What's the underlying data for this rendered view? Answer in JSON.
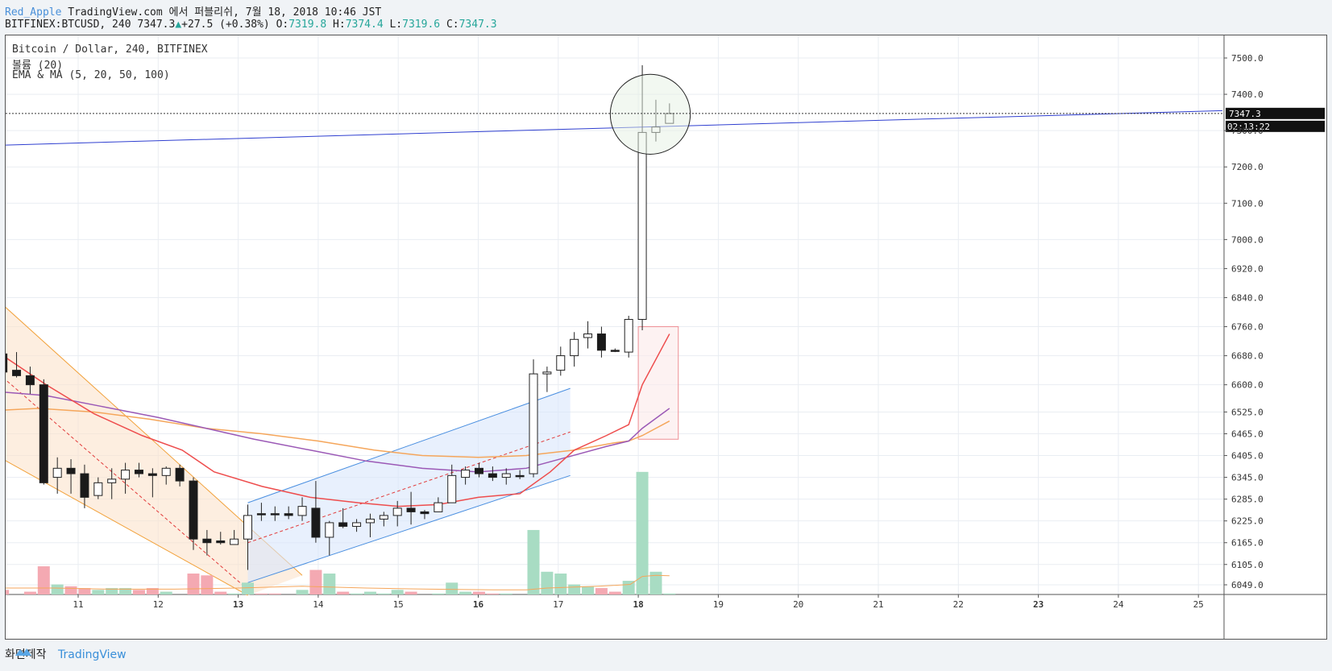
{
  "header": {
    "author": "Red_Apple",
    "published": "TradingView.com 에서 퍼블리쉬, 7월 18, 2018 10:46 JST",
    "symbol_line": "BITFINEX:BTCUSD, 240",
    "last": "7347.3",
    "change": "+27.5 (+0.38%)",
    "o_label": "O:",
    "o_val": "7319.8",
    "h_label": "H:",
    "h_val": "7374.4",
    "l_label": "L:",
    "l_val": "7319.6",
    "c_label": "C:",
    "c_val": "7347.3"
  },
  "legend": {
    "title": "Bitcoin / Dollar, 240, BITFINEX",
    "volume": "볼륨 (20)",
    "ema": "EMA & MA (5, 20, 50, 100)"
  },
  "footer": {
    "made": "화면제작",
    "brand": "TradingView"
  },
  "colors": {
    "up": "#ffffff",
    "down": "#1a1a1a",
    "vol_up": "#a8dcc3",
    "vol_down": "#f4a9b2",
    "ema_red": "#ee4d4d",
    "ma_purple": "#9b59b6",
    "ma_orange": "#f5a65b",
    "trend_blue": "#2f3fd0"
  },
  "chart_data": {
    "type": "candlestick",
    "price_labels": [
      "7500.0",
      "7400.0",
      "7347.3",
      "7300.0",
      "7200.0",
      "7100.0",
      "7000.0",
      "6920.0",
      "6840.0",
      "6760.0",
      "6680.0",
      "6600.0",
      "6525.0",
      "6465.0",
      "6405.0",
      "6345.0",
      "6285.0",
      "6225.0",
      "6165.0",
      "6105.0",
      "6049.0"
    ],
    "price_levels": [
      7500,
      7400,
      7347.3,
      7300,
      7200,
      7100,
      7000,
      6920,
      6840,
      6760,
      6680,
      6600,
      6525,
      6465,
      6405,
      6345,
      6285,
      6225,
      6165,
      6105,
      6049
    ],
    "last_price_label": "7347.3",
    "countdown": "02:13:22",
    "date_labels": [
      "11",
      "12",
      "13",
      "14",
      "15",
      "16",
      "17",
      "18",
      "19",
      "20",
      "21",
      "22",
      "23",
      "24",
      "25"
    ],
    "date_x": [
      11,
      12,
      13,
      14,
      15,
      16,
      17,
      18,
      19,
      20,
      21,
      22,
      23,
      24,
      25
    ],
    "candles": [
      [
        10.06,
        6685,
        6820,
        6625,
        6635,
        6035,
        "d"
      ],
      [
        10.23,
        6640,
        6690,
        6620,
        6625,
        6020,
        "d"
      ],
      [
        10.4,
        6625,
        6650,
        6575,
        6600,
        6030,
        "d"
      ],
      [
        10.57,
        6600,
        6615,
        6325,
        6330,
        6100,
        "d"
      ],
      [
        10.74,
        6345,
        6400,
        6300,
        6370,
        6050,
        "u"
      ],
      [
        10.91,
        6370,
        6395,
        6300,
        6355,
        6045,
        "d"
      ],
      [
        11.08,
        6355,
        6380,
        6260,
        6290,
        6040,
        "d"
      ],
      [
        11.25,
        6295,
        6345,
        6285,
        6330,
        6035,
        "u"
      ],
      [
        11.42,
        6330,
        6370,
        6285,
        6340,
        6040,
        "u"
      ],
      [
        11.59,
        6340,
        6385,
        6300,
        6365,
        6040,
        "u"
      ],
      [
        11.76,
        6365,
        6385,
        6345,
        6355,
        6035,
        "d"
      ],
      [
        11.93,
        6355,
        6370,
        6290,
        6350,
        6040,
        "d"
      ],
      [
        12.1,
        6350,
        6375,
        6325,
        6370,
        6030,
        "u"
      ],
      [
        12.27,
        6370,
        6380,
        6320,
        6335,
        6020,
        "d"
      ],
      [
        12.44,
        6335,
        6345,
        6145,
        6175,
        6080,
        "d"
      ],
      [
        12.61,
        6175,
        6200,
        6130,
        6165,
        6075,
        "d"
      ],
      [
        12.78,
        6165,
        6195,
        6160,
        6170,
        6030,
        "d"
      ],
      [
        12.95,
        6160,
        6200,
        6160,
        6175,
        6025,
        "u"
      ],
      [
        13.12,
        6175,
        6270,
        6090,
        6240,
        6055,
        "u"
      ],
      [
        13.29,
        6245,
        6275,
        6225,
        6245,
        6025,
        "d"
      ],
      [
        13.46,
        6245,
        6265,
        6225,
        6245,
        6025,
        "d"
      ],
      [
        13.63,
        6245,
        6265,
        6230,
        6240,
        6022,
        "d"
      ],
      [
        13.8,
        6240,
        6290,
        6225,
        6265,
        6035,
        "u"
      ],
      [
        13.97,
        6260,
        6335,
        6165,
        6180,
        6090,
        "d"
      ],
      [
        14.14,
        6180,
        6225,
        6130,
        6220,
        6080,
        "u"
      ],
      [
        14.31,
        6220,
        6260,
        6205,
        6210,
        6030,
        "d"
      ],
      [
        14.48,
        6210,
        6230,
        6195,
        6220,
        6025,
        "u"
      ],
      [
        14.65,
        6220,
        6245,
        6180,
        6230,
        6030,
        "u"
      ],
      [
        14.82,
        6230,
        6250,
        6210,
        6240,
        6025,
        "u"
      ],
      [
        14.99,
        6240,
        6280,
        6210,
        6260,
        6035,
        "u"
      ],
      [
        15.16,
        6260,
        6305,
        6215,
        6250,
        6030,
        "d"
      ],
      [
        15.33,
        6250,
        6255,
        6230,
        6245,
        6020,
        "d"
      ],
      [
        15.5,
        6250,
        6290,
        6250,
        6275,
        6025,
        "u"
      ],
      [
        15.67,
        6275,
        6380,
        6275,
        6350,
        6055,
        "u"
      ],
      [
        15.84,
        6345,
        6375,
        6325,
        6365,
        6030,
        "u"
      ],
      [
        16.01,
        6370,
        6385,
        6345,
        6355,
        6030,
        "d"
      ],
      [
        16.18,
        6355,
        6375,
        6335,
        6345,
        6025,
        "d"
      ],
      [
        16.35,
        6345,
        6370,
        6325,
        6355,
        6025,
        "u"
      ],
      [
        16.52,
        6350,
        6365,
        6340,
        6350,
        6020,
        "d"
      ],
      [
        16.69,
        6355,
        6670,
        6345,
        6630,
        6200,
        "u"
      ],
      [
        16.86,
        6630,
        6650,
        6580,
        6635,
        6085,
        "u"
      ],
      [
        17.03,
        6640,
        6705,
        6625,
        6680,
        6080,
        "u"
      ],
      [
        17.2,
        6680,
        6745,
        6650,
        6725,
        6050,
        "u"
      ],
      [
        17.37,
        6730,
        6775,
        6700,
        6740,
        6045,
        "u"
      ],
      [
        17.54,
        6740,
        6760,
        6675,
        6695,
        6040,
        "d"
      ],
      [
        17.71,
        6695,
        6700,
        6690,
        6692,
        6030,
        "d"
      ],
      [
        17.88,
        6690,
        6790,
        6675,
        6780,
        6060,
        "u"
      ],
      [
        18.05,
        6780,
        7480,
        6750,
        7295,
        6360,
        "u"
      ],
      [
        18.22,
        7295,
        7385,
        7270,
        7310,
        6085,
        "u"
      ],
      [
        18.39,
        7320,
        7375,
        7320,
        7347,
        6025,
        "u"
      ]
    ],
    "ema_red": [
      [
        10.06,
        6680
      ],
      [
        10.6,
        6600
      ],
      [
        11.2,
        6520
      ],
      [
        11.8,
        6460
      ],
      [
        12.3,
        6420
      ],
      [
        12.7,
        6360
      ],
      [
        13.3,
        6320
      ],
      [
        13.9,
        6290
      ],
      [
        14.5,
        6275
      ],
      [
        15.0,
        6265
      ],
      [
        15.5,
        6270
      ],
      [
        16.0,
        6290
      ],
      [
        16.52,
        6300
      ],
      [
        16.9,
        6360
      ],
      [
        17.2,
        6420
      ],
      [
        17.6,
        6460
      ],
      [
        17.88,
        6490
      ],
      [
        18.05,
        6600
      ],
      [
        18.39,
        6740
      ]
    ],
    "ma_purple": [
      [
        10.06,
        6580
      ],
      [
        10.6,
        6570
      ],
      [
        11.3,
        6540
      ],
      [
        12.0,
        6510
      ],
      [
        12.6,
        6480
      ],
      [
        13.2,
        6450
      ],
      [
        13.9,
        6420
      ],
      [
        14.6,
        6390
      ],
      [
        15.3,
        6370
      ],
      [
        16.0,
        6360
      ],
      [
        16.6,
        6370
      ],
      [
        17.1,
        6400
      ],
      [
        17.6,
        6430
      ],
      [
        17.88,
        6445
      ],
      [
        18.05,
        6480
      ],
      [
        18.39,
        6535
      ]
    ],
    "ma_orange": [
      [
        10.06,
        6530
      ],
      [
        10.5,
        6535
      ],
      [
        11.2,
        6525
      ],
      [
        11.9,
        6505
      ],
      [
        12.6,
        6480
      ],
      [
        13.3,
        6465
      ],
      [
        14.0,
        6445
      ],
      [
        14.7,
        6420
      ],
      [
        15.3,
        6405
      ],
      [
        16.0,
        6400
      ],
      [
        16.6,
        6405
      ],
      [
        17.2,
        6420
      ],
      [
        17.7,
        6440
      ],
      [
        17.88,
        6445
      ],
      [
        18.05,
        6460
      ],
      [
        18.39,
        6500
      ]
    ],
    "volume_ma": [
      [
        10.06,
        6040
      ],
      [
        10.7,
        6040
      ],
      [
        11.4,
        6037
      ],
      [
        12.2,
        6037
      ],
      [
        13.0,
        6040
      ],
      [
        13.8,
        6045
      ],
      [
        14.6,
        6040
      ],
      [
        15.4,
        6037
      ],
      [
        16.2,
        6035
      ],
      [
        16.6,
        6035
      ],
      [
        16.86,
        6040
      ],
      [
        17.5,
        6045
      ],
      [
        17.9,
        6050
      ],
      [
        18.05,
        6072
      ],
      [
        18.22,
        6075
      ],
      [
        18.39,
        6074
      ]
    ],
    "trend_line": [
      [
        10.06,
        7260
      ],
      [
        25.3,
        7355
      ]
    ],
    "ascending_channel": {
      "upper": [
        [
          13.12,
          6275
        ],
        [
          17.15,
          6590
        ]
      ],
      "lower": [
        [
          13.12,
          6055
        ],
        [
          17.15,
          6350
        ]
      ],
      "mid": [
        [
          13.12,
          6165
        ],
        [
          17.15,
          6470
        ]
      ]
    },
    "descending_channel": {
      "upper": [
        [
          10.06,
          6820
        ],
        [
          13.8,
          6075
        ]
      ],
      "lower": [
        [
          10.06,
          6395
        ],
        [
          13.12,
          6020
        ]
      ],
      "mid": [
        [
          10.06,
          6620
        ],
        [
          13.1,
          6040
        ]
      ]
    },
    "highlight_box": {
      "x0": 18.0,
      "x1": 18.5,
      "y0": 6450,
      "y1": 6760
    },
    "circle": {
      "cx": 18.15,
      "cy": 7345,
      "rx": 0.5,
      "ry": 110
    }
  }
}
